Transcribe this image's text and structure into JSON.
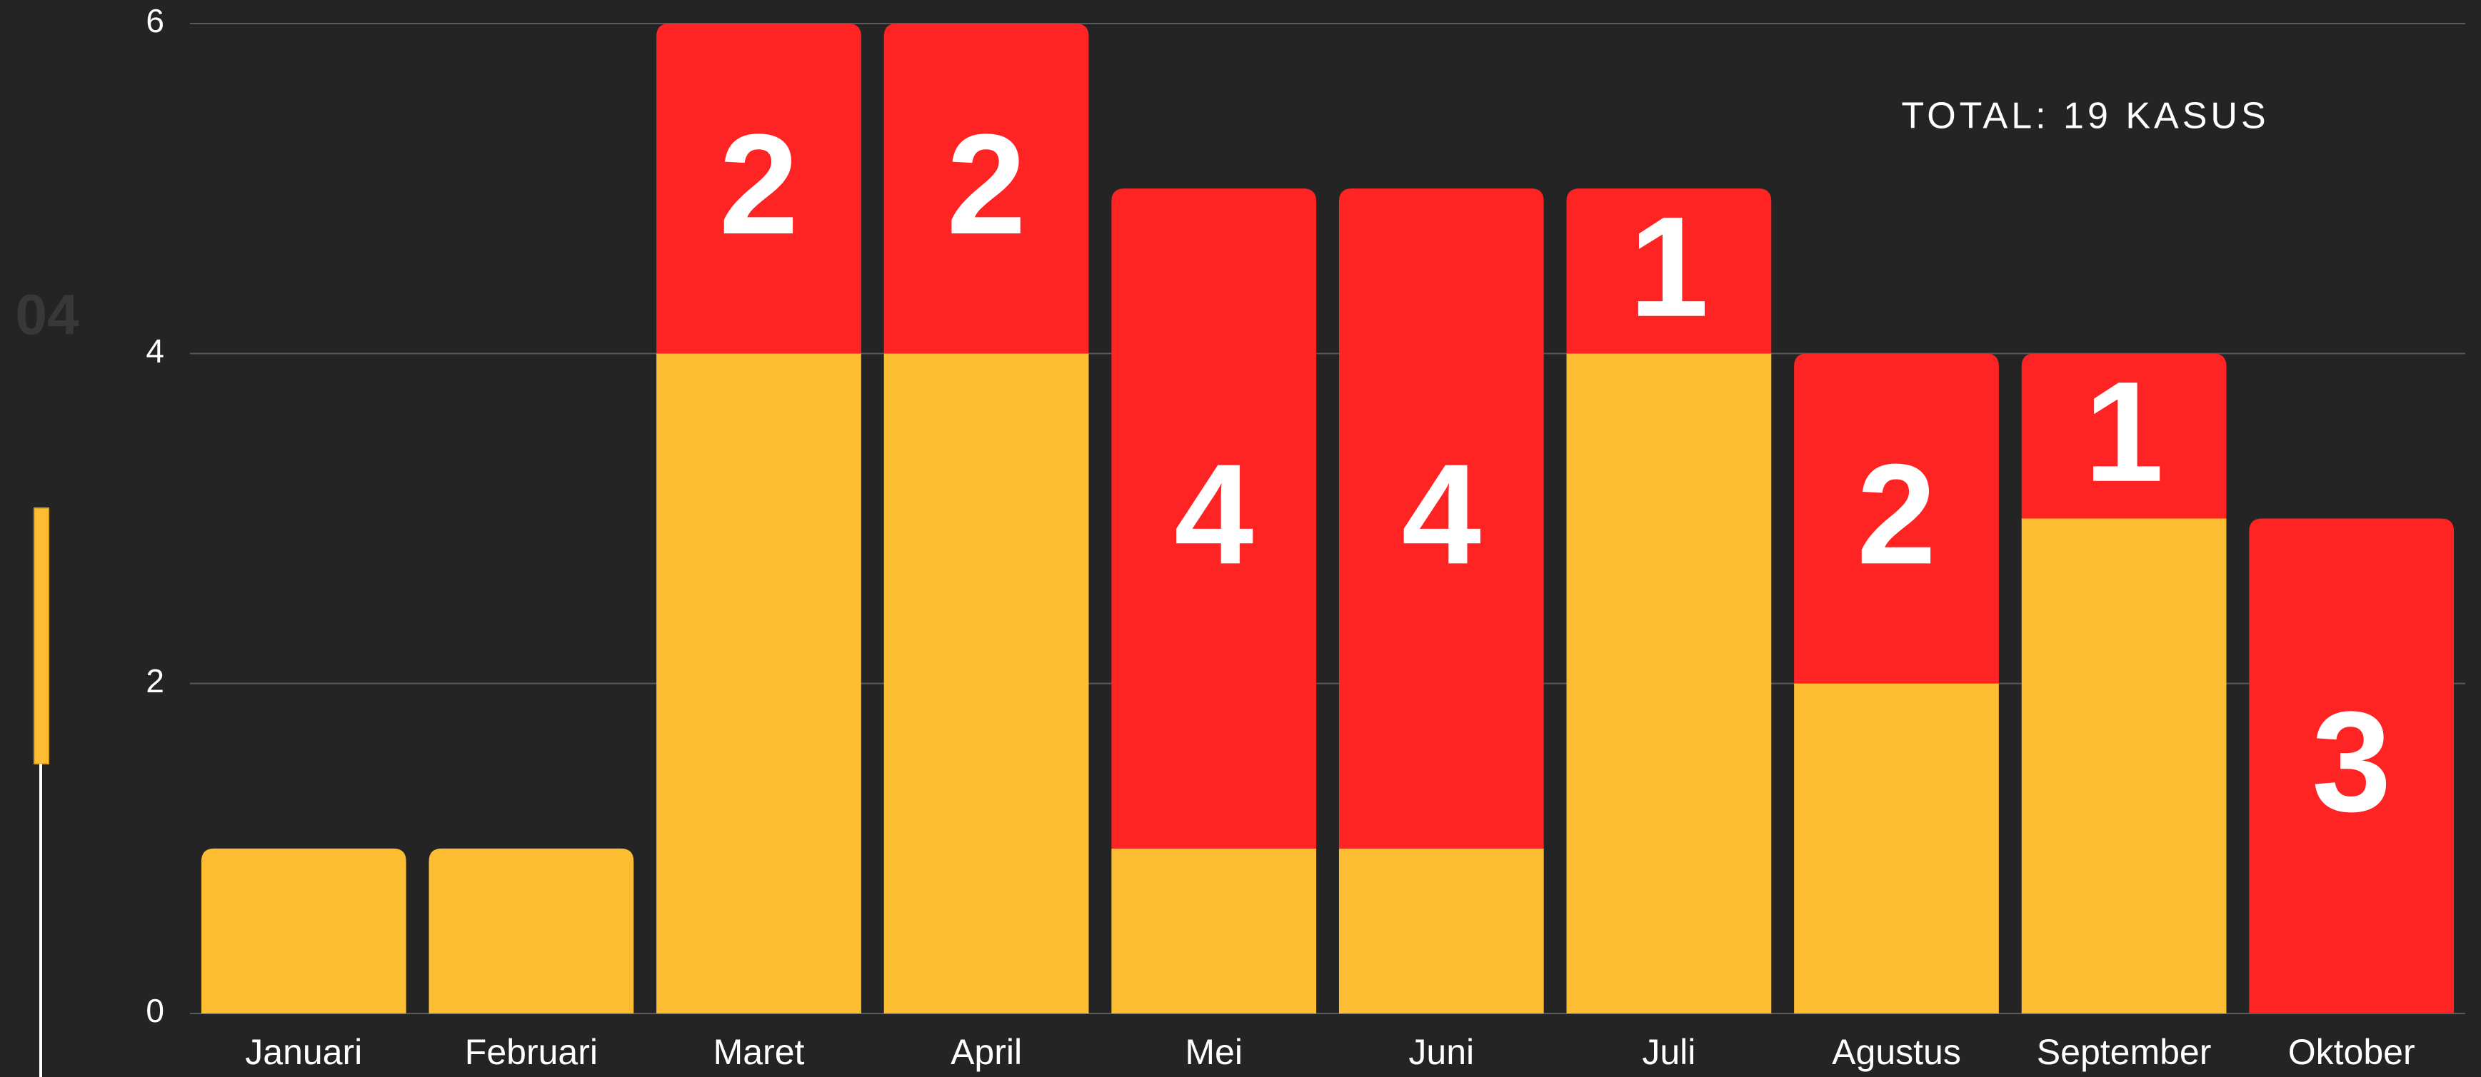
{
  "side_label": "04",
  "chart_data": {
    "type": "stacked_bar",
    "annotation": "TOTAL: 19 KASUS",
    "categories": [
      "Januari",
      "Februari",
      "Maret",
      "April",
      "Mei",
      "Juni",
      "Juli",
      "Agustus",
      "September",
      "Oktober"
    ],
    "series": [
      {
        "color": "#fdbd33",
        "values": [
          1,
          1,
          4,
          4,
          1,
          1,
          4,
          2,
          3,
          0
        ],
        "show_labels": false
      },
      {
        "color": "#fe2424",
        "values": [
          0,
          0,
          2,
          2,
          4,
          4,
          1,
          2,
          1,
          3
        ],
        "show_labels": true
      }
    ],
    "ylim": [
      0,
      6
    ],
    "yticks": [
      0,
      2,
      4,
      6
    ],
    "grid": true
  }
}
